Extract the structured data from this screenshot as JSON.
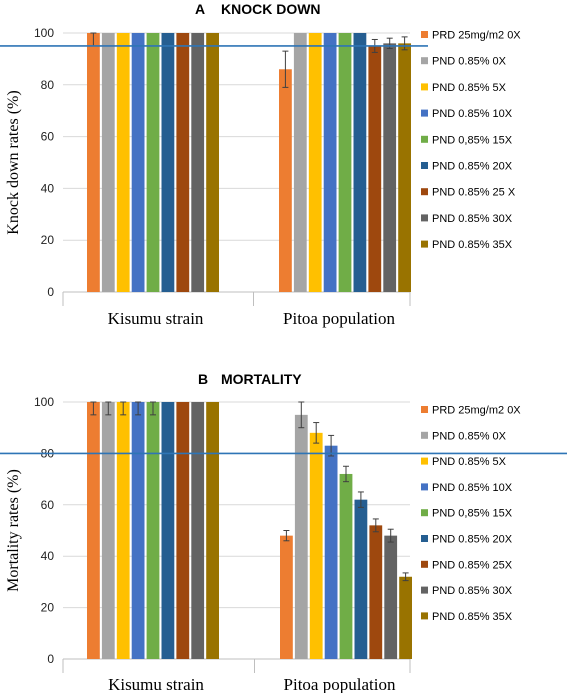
{
  "chart_data": [
    {
      "panel": "A",
      "type": "bar",
      "title": "KNOCK DOWN",
      "ylabel": "Knock down rates (%)",
      "xlabel": "",
      "ylim": [
        0,
        100
      ],
      "yticks": [
        0,
        20,
        40,
        60,
        80,
        100
      ],
      "categories": [
        "Kisumu strain",
        "Pitoa population"
      ],
      "threshold": 95,
      "legend_position": "right",
      "series": [
        {
          "name": "PRD 25mg/m2 0X",
          "color": "#ED7D31",
          "values": [
            100,
            86
          ],
          "errors": [
            5,
            7
          ]
        },
        {
          "name": "PND  0.85% 0X",
          "color": "#A5A5A5",
          "values": [
            100,
            100
          ],
          "errors": [
            0,
            0
          ]
        },
        {
          "name": "PND 0.85% 5X",
          "color": "#FFC000",
          "values": [
            100,
            100
          ],
          "errors": [
            0,
            0
          ]
        },
        {
          "name": "PND  0.85% 10X",
          "color": "#4472C4",
          "values": [
            100,
            100
          ],
          "errors": [
            0,
            0
          ]
        },
        {
          "name": "PND  0,85% 15X",
          "color": "#70AD47",
          "values": [
            100,
            100
          ],
          "errors": [
            0,
            0
          ]
        },
        {
          "name": "PND  0.85% 20X",
          "color": "#255E91",
          "values": [
            100,
            100
          ],
          "errors": [
            0,
            0
          ]
        },
        {
          "name": "PND  0.85% 25 X",
          "color": "#9E480E",
          "values": [
            100,
            95
          ],
          "errors": [
            0,
            2.5
          ]
        },
        {
          "name": "PND 0.85% 30X",
          "color": "#636363",
          "values": [
            100,
            96
          ],
          "errors": [
            0,
            2
          ]
        },
        {
          "name": "PND  0.85% 35X",
          "color": "#997300",
          "values": [
            100,
            96
          ],
          "errors": [
            0,
            2.5
          ]
        }
      ]
    },
    {
      "panel": "B",
      "type": "bar",
      "title": "MORTALITY",
      "ylabel": "Mortality rates (%)",
      "xlabel": "",
      "ylim": [
        0,
        100
      ],
      "yticks": [
        0,
        20,
        40,
        60,
        80,
        100
      ],
      "categories": [
        "Kisumu strain",
        "Pitoa population"
      ],
      "threshold": 80,
      "legend_position": "right",
      "series": [
        {
          "name": "PRD 25mg/m2 0X",
          "color": "#ED7D31",
          "values": [
            100,
            48
          ],
          "errors": [
            5,
            2
          ]
        },
        {
          "name": "PND  0.85% 0X",
          "color": "#A5A5A5",
          "values": [
            100,
            95
          ],
          "errors": [
            5,
            5
          ]
        },
        {
          "name": "PND 0.85% 5X",
          "color": "#FFC000",
          "values": [
            100,
            88
          ],
          "errors": [
            5,
            4
          ]
        },
        {
          "name": "PND 0.85% 10X",
          "color": "#4472C4",
          "values": [
            100,
            83
          ],
          "errors": [
            5,
            4
          ]
        },
        {
          "name": "PND  0,85% 15X",
          "color": "#70AD47",
          "values": [
            100,
            72
          ],
          "errors": [
            5,
            3
          ]
        },
        {
          "name": "PND  0.85% 20X",
          "color": "#255E91",
          "values": [
            100,
            62
          ],
          "errors": [
            0,
            3
          ]
        },
        {
          "name": "PND  0.85% 25X",
          "color": "#9E480E",
          "values": [
            100,
            52
          ],
          "errors": [
            0,
            2.5
          ]
        },
        {
          "name": "PND  0.85% 30X",
          "color": "#636363",
          "values": [
            100,
            48
          ],
          "errors": [
            0,
            2.5
          ]
        },
        {
          "name": "PND  0.85% 35X",
          "color": "#997300",
          "values": [
            100,
            32
          ],
          "errors": [
            0,
            1.5
          ]
        }
      ]
    }
  ]
}
